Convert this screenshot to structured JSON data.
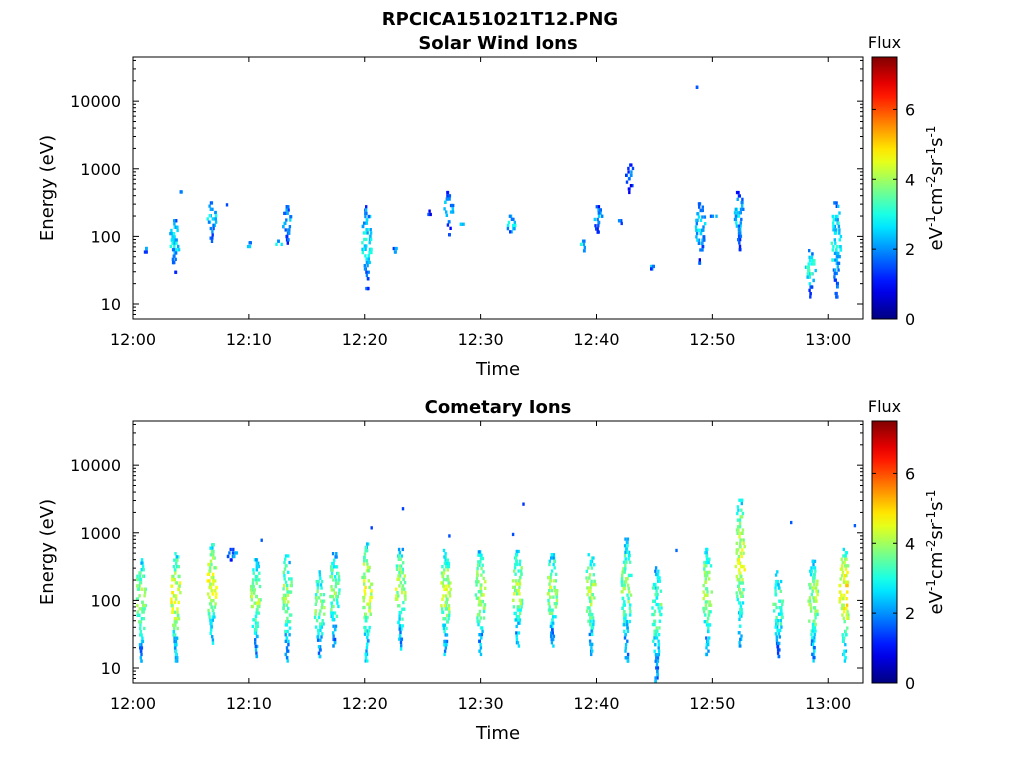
{
  "figure_title": "RPCICA151021T12.PNG",
  "chart_data": [
    {
      "type": "heatmap",
      "title": "Solar Wind Ions",
      "xlabel": "Time",
      "ylabel": "Energy (eV)",
      "x_ticks": [
        "12:00",
        "12:10",
        "12:20",
        "12:30",
        "12:40",
        "12:50",
        "13:00"
      ],
      "x_tick_minutes": [
        0,
        10,
        20,
        30,
        40,
        50,
        60
      ],
      "xlim_minutes": [
        0,
        63
      ],
      "y_scale": "log",
      "y_ticks": [
        "10",
        "100",
        "1000",
        "10000"
      ],
      "ylim": [
        6,
        45000
      ],
      "colorbar": {
        "title": "Flux",
        "label": "eV-1cm-2sr-1s-1",
        "ticks": [
          "0",
          "2",
          "4",
          "6"
        ],
        "range": [
          0,
          7.5
        ],
        "colormap": "jet"
      },
      "bursts": [
        {
          "t": 1.0,
          "e_lo": 55,
          "e_hi": 70,
          "v": 3.0
        },
        {
          "t": 3.5,
          "e_lo": 28,
          "e_hi": 180,
          "v": 2.6
        },
        {
          "t": 4.2,
          "e_lo": 420,
          "e_hi": 480,
          "v": 1.8
        },
        {
          "t": 6.7,
          "e_lo": 80,
          "e_hi": 330,
          "v": 2.4
        },
        {
          "t": 7.9,
          "e_lo": 250,
          "e_hi": 310,
          "v": 1.8
        },
        {
          "t": 10.0,
          "e_lo": 58,
          "e_hi": 85,
          "v": 2.8
        },
        {
          "t": 12.4,
          "e_lo": 65,
          "e_hi": 90,
          "v": 2.8
        },
        {
          "t": 13.2,
          "e_lo": 75,
          "e_hi": 290,
          "v": 2.4
        },
        {
          "t": 20.1,
          "e_lo": 16,
          "e_hi": 290,
          "v": 2.7
        },
        {
          "t": 22.5,
          "e_lo": 55,
          "e_hi": 70,
          "v": 3.0
        },
        {
          "t": 25.5,
          "e_lo": 200,
          "e_hi": 250,
          "v": 2.2
        },
        {
          "t": 27.2,
          "e_lo": 100,
          "e_hi": 470,
          "v": 2.2
        },
        {
          "t": 28.5,
          "e_lo": 140,
          "e_hi": 160,
          "v": 2.6
        },
        {
          "t": 32.5,
          "e_lo": 90,
          "e_hi": 210,
          "v": 2.6
        },
        {
          "t": 38.8,
          "e_lo": 58,
          "e_hi": 90,
          "v": 2.7
        },
        {
          "t": 40.0,
          "e_lo": 110,
          "e_hi": 290,
          "v": 2.4
        },
        {
          "t": 42.0,
          "e_lo": 150,
          "e_hi": 180,
          "v": 2.3
        },
        {
          "t": 42.8,
          "e_lo": 420,
          "e_hi": 1200,
          "v": 1.8
        },
        {
          "t": 44.7,
          "e_lo": 32,
          "e_hi": 38,
          "v": 3.0
        },
        {
          "t": 48.9,
          "e_lo": 38,
          "e_hi": 320,
          "v": 2.4
        },
        {
          "t": 48.9,
          "e_lo": 15000,
          "e_hi": 17000,
          "v": 1.2
        },
        {
          "t": 50.0,
          "e_lo": 180,
          "e_hi": 210,
          "v": 2.4
        },
        {
          "t": 52.2,
          "e_lo": 60,
          "e_hi": 470,
          "v": 2.3
        },
        {
          "t": 58.4,
          "e_lo": 12,
          "e_hi": 65,
          "v": 3.0
        },
        {
          "t": 60.6,
          "e_lo": 12,
          "e_hi": 330,
          "v": 2.8
        }
      ]
    },
    {
      "type": "heatmap",
      "title": "Cometary Ions",
      "xlabel": "Time",
      "ylabel": "Energy (eV)",
      "x_ticks": [
        "12:00",
        "12:10",
        "12:20",
        "12:30",
        "12:40",
        "12:50",
        "13:00"
      ],
      "x_tick_minutes": [
        0,
        10,
        20,
        30,
        40,
        50,
        60
      ],
      "xlim_minutes": [
        0,
        63
      ],
      "y_scale": "log",
      "y_ticks": [
        "10",
        "100",
        "1000",
        "10000"
      ],
      "ylim": [
        6,
        45000
      ],
      "colorbar": {
        "title": "Flux",
        "label": "eV-1cm-2sr-1s-1",
        "ticks": [
          "0",
          "2",
          "4",
          "6"
        ],
        "range": [
          0,
          7.5
        ],
        "colormap": "jet"
      },
      "bursts": [
        {
          "t": 0.6,
          "e_lo": 12,
          "e_hi": 420,
          "v": 3.8
        },
        {
          "t": 3.6,
          "e_lo": 12,
          "e_hi": 520,
          "v": 4.3
        },
        {
          "t": 6.7,
          "e_lo": 22,
          "e_hi": 700,
          "v": 4.4
        },
        {
          "t": 8.5,
          "e_lo": 330,
          "e_hi": 600,
          "v": 2.0
        },
        {
          "t": 10.5,
          "e_lo": 14,
          "e_hi": 420,
          "v": 3.8
        },
        {
          "t": 13.2,
          "e_lo": 12,
          "e_hi": 480,
          "v": 3.8
        },
        {
          "t": 16.0,
          "e_lo": 14,
          "e_hi": 280,
          "v": 3.6
        },
        {
          "t": 17.3,
          "e_lo": 20,
          "e_hi": 520,
          "v": 3.6
        },
        {
          "t": 20.1,
          "e_lo": 12,
          "e_hi": 720,
          "v": 4.3
        },
        {
          "t": 23.0,
          "e_lo": 18,
          "e_hi": 600,
          "v": 4.0
        },
        {
          "t": 26.9,
          "e_lo": 15,
          "e_hi": 580,
          "v": 4.1
        },
        {
          "t": 29.9,
          "e_lo": 15,
          "e_hi": 550,
          "v": 3.9
        },
        {
          "t": 33.1,
          "e_lo": 20,
          "e_hi": 560,
          "v": 4.0
        },
        {
          "t": 36.1,
          "e_lo": 20,
          "e_hi": 500,
          "v": 3.9
        },
        {
          "t": 39.4,
          "e_lo": 15,
          "e_hi": 560,
          "v": 4.0
        },
        {
          "t": 42.5,
          "e_lo": 12,
          "e_hi": 850,
          "v": 3.6
        },
        {
          "t": 45.1,
          "e_lo": 6,
          "e_hi": 320,
          "v": 3.4
        },
        {
          "t": 49.5,
          "e_lo": 15,
          "e_hi": 600,
          "v": 4.0
        },
        {
          "t": 52.3,
          "e_lo": 20,
          "e_hi": 3200,
          "v": 4.3
        },
        {
          "t": 55.6,
          "e_lo": 14,
          "e_hi": 280,
          "v": 3.3
        },
        {
          "t": 58.6,
          "e_lo": 12,
          "e_hi": 400,
          "v": 3.9
        },
        {
          "t": 61.3,
          "e_lo": 12,
          "e_hi": 600,
          "v": 4.7
        }
      ],
      "isolated_points": [
        {
          "t": 11.0,
          "e": 820,
          "v": 1.6
        },
        {
          "t": 20.5,
          "e": 1250,
          "v": 1.4
        },
        {
          "t": 23.2,
          "e": 2400,
          "v": 1.4
        },
        {
          "t": 27.2,
          "e": 950,
          "v": 1.5
        },
        {
          "t": 32.7,
          "e": 1000,
          "v": 1.5
        },
        {
          "t": 33.6,
          "e": 2800,
          "v": 1.3
        },
        {
          "t": 46.8,
          "e": 580,
          "v": 1.7
        },
        {
          "t": 56.7,
          "e": 1500,
          "v": 1.6
        },
        {
          "t": 62.2,
          "e": 1350,
          "v": 1.6
        }
      ]
    }
  ]
}
